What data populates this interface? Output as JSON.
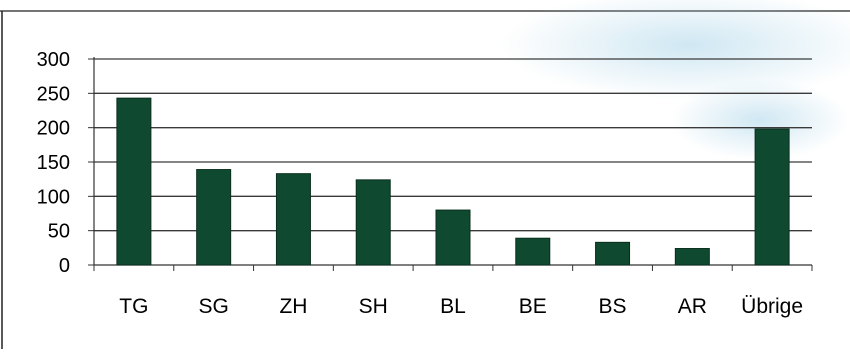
{
  "chart_data": {
    "type": "bar",
    "categories": [
      "TG",
      "SG",
      "ZH",
      "SH",
      "BL",
      "BE",
      "BS",
      "AR",
      "Übrige"
    ],
    "values": [
      243,
      139,
      133,
      124,
      80,
      39,
      33,
      24,
      198
    ],
    "yticks": [
      0,
      50,
      100,
      150,
      200,
      250,
      300
    ],
    "ylim": [
      0,
      300
    ],
    "grid": true,
    "legend": "none",
    "colors": {
      "bar": "#0f4a30",
      "bar_edge": "#0a2e1e",
      "grid": "#3a3a3a",
      "axis": "#333333",
      "text": "#000000",
      "smudge": "#a9d4e8"
    }
  }
}
